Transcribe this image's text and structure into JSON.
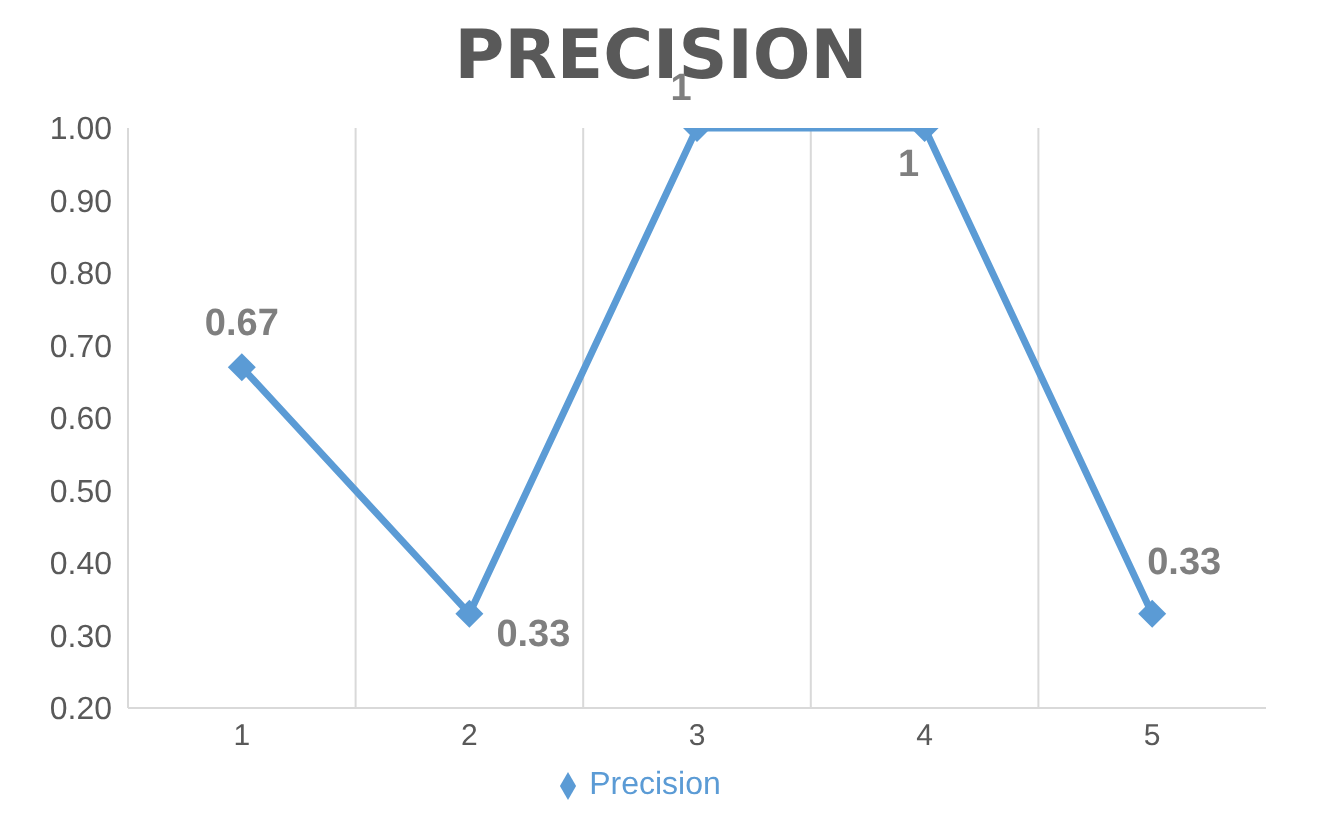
{
  "chart_data": {
    "type": "line",
    "title": "PRECISION",
    "categories": [
      "1",
      "2",
      "3",
      "4",
      "5"
    ],
    "series": [
      {
        "name": "Precision",
        "color": "#5b9bd5",
        "values": [
          0.67,
          0.33,
          1,
          1,
          0.33
        ]
      }
    ],
    "ylim": [
      0.2,
      1.0
    ],
    "yticks": [
      {
        "value": 0.2,
        "label": "0.20"
      },
      {
        "value": 0.3,
        "label": "0.30"
      },
      {
        "value": 0.4,
        "label": "0.40"
      },
      {
        "value": 0.5,
        "label": "0.50"
      },
      {
        "value": 0.6,
        "label": "0.60"
      },
      {
        "value": 0.7,
        "label": "0.70"
      },
      {
        "value": 0.8,
        "label": "0.80"
      },
      {
        "value": 0.9,
        "label": "0.90"
      },
      {
        "value": 1.0,
        "label": "1.00"
      }
    ],
    "grid": "x",
    "legend": "bottom",
    "marker": "diamond",
    "line_style": "solid",
    "data_labels": true
  }
}
